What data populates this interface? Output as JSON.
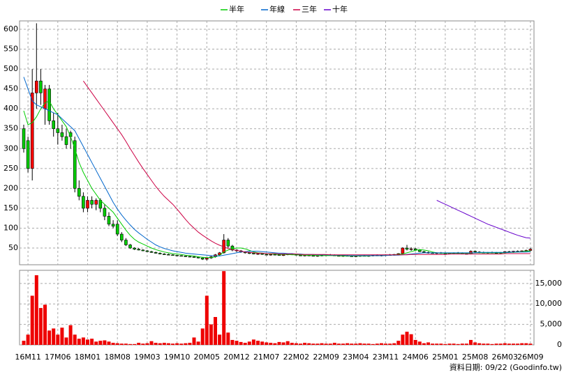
{
  "chart_data": {
    "type": "candlestick",
    "footer": "資料日期: 09/22  (Goodinfo.tw)",
    "categories": [
      null,
      "16M11",
      null,
      null,
      null,
      null,
      null,
      null,
      "17M06",
      null,
      null,
      null,
      null,
      null,
      null,
      "18M01",
      null,
      null,
      null,
      null,
      null,
      null,
      "18M08",
      null,
      null,
      null,
      null,
      null,
      null,
      "19M03",
      null,
      null,
      null,
      null,
      null,
      null,
      "19M10",
      null,
      null,
      null,
      null,
      null,
      null,
      "20M05",
      null,
      null,
      null,
      null,
      null,
      null,
      "20M12",
      null,
      null,
      null,
      null,
      null,
      null,
      "21M07",
      null,
      null,
      null,
      null,
      null,
      null,
      "22M02",
      null,
      null,
      null,
      null,
      null,
      null,
      "22M09",
      null,
      null,
      null,
      null,
      null,
      null,
      "23M04",
      null,
      null,
      null,
      null,
      null,
      null,
      "23M11",
      null,
      null,
      null,
      null,
      null,
      null,
      "24M06",
      null,
      null,
      null,
      null,
      null,
      null,
      "25M01",
      null,
      null,
      null,
      null,
      null,
      null,
      "25M08",
      null,
      null,
      null,
      null,
      null,
      null,
      "26M03",
      null,
      null,
      null,
      null,
      null,
      "26M09"
    ],
    "up_color": "#ff0000",
    "down_color": "#00cc00",
    "open": [
      350,
      320,
      250,
      440,
      470,
      400,
      450,
      370,
      350,
      340,
      330,
      340,
      320,
      200,
      180,
      150,
      170,
      160,
      170,
      150,
      130,
      110,
      110,
      85,
      70,
      58,
      50,
      47,
      45,
      43,
      41,
      39,
      37,
      35,
      34,
      33,
      32,
      31,
      30,
      29,
      28,
      27,
      25,
      22,
      25,
      28,
      33,
      38,
      70,
      55,
      45,
      43,
      40,
      38,
      37,
      35,
      36,
      34,
      33,
      34,
      33,
      32,
      33,
      35,
      34,
      32,
      31,
      32,
      31,
      30,
      31,
      32,
      33,
      32,
      31,
      30,
      31,
      30,
      29,
      30,
      31,
      30,
      31,
      32,
      31,
      32,
      33,
      32,
      34,
      36,
      50,
      47,
      48,
      45,
      41,
      39,
      38,
      37,
      38,
      37,
      36,
      37,
      38,
      37,
      36,
      35,
      42,
      40,
      39,
      38,
      39,
      38,
      37,
      39,
      41,
      40,
      42,
      41,
      43,
      44
    ],
    "high": [
      360,
      330,
      500,
      615,
      500,
      460,
      460,
      390,
      390,
      360,
      350,
      345,
      330,
      220,
      190,
      180,
      180,
      175,
      175,
      160,
      140,
      120,
      120,
      90,
      75,
      60,
      52,
      50,
      47,
      45,
      43,
      41,
      39,
      37,
      36,
      34,
      33,
      32,
      31,
      30,
      29,
      29,
      27,
      26,
      30,
      35,
      40,
      85,
      75,
      58,
      47,
      45,
      42,
      40,
      39,
      38,
      37,
      36,
      35,
      36,
      35,
      34,
      36,
      37,
      35,
      34,
      33,
      34,
      33,
      32,
      33,
      34,
      35,
      34,
      33,
      32,
      33,
      32,
      31,
      32,
      33,
      32,
      33,
      34,
      33,
      34,
      35,
      35,
      37,
      52,
      58,
      52,
      50,
      47,
      43,
      41,
      40,
      39,
      40,
      39,
      38,
      39,
      40,
      39,
      38,
      44,
      44,
      42,
      41,
      40,
      41,
      40,
      40,
      42,
      43,
      43,
      44,
      44,
      46,
      50
    ],
    "low": [
      290,
      240,
      220,
      400,
      410,
      360,
      360,
      330,
      310,
      320,
      300,
      300,
      190,
      170,
      140,
      140,
      150,
      145,
      140,
      120,
      105,
      100,
      80,
      65,
      55,
      48,
      45,
      44,
      42,
      40,
      38,
      36,
      34,
      33,
      32,
      31,
      30,
      29,
      28,
      27,
      26,
      24,
      20,
      19,
      23,
      26,
      30,
      36,
      50,
      42,
      40,
      38,
      36,
      35,
      34,
      33,
      33,
      32,
      31,
      32,
      31,
      30,
      32,
      33,
      31,
      30,
      29,
      30,
      29,
      28,
      29,
      30,
      31,
      30,
      29,
      28,
      29,
      28,
      27,
      28,
      29,
      28,
      29,
      30,
      29,
      30,
      31,
      31,
      32,
      35,
      44,
      43,
      44,
      40,
      38,
      36,
      36,
      35,
      36,
      35,
      34,
      35,
      36,
      35,
      34,
      34,
      38,
      37,
      37,
      36,
      37,
      36,
      35,
      37,
      39,
      38,
      40,
      40,
      41,
      42
    ],
    "close": [
      300,
      250,
      440,
      470,
      440,
      450,
      370,
      350,
      340,
      330,
      310,
      330,
      200,
      180,
      150,
      170,
      160,
      170,
      150,
      130,
      110,
      105,
      85,
      70,
      58,
      50,
      47,
      45,
      43,
      41,
      39,
      37,
      35,
      34,
      33,
      32,
      31,
      30,
      29,
      28,
      27,
      25,
      22,
      25,
      28,
      33,
      38,
      70,
      55,
      45,
      43,
      40,
      38,
      37,
      35,
      36,
      34,
      33,
      34,
      33,
      32,
      33,
      35,
      34,
      32,
      31,
      32,
      31,
      30,
      31,
      32,
      33,
      32,
      31,
      30,
      31,
      30,
      29,
      30,
      31,
      30,
      31,
      32,
      31,
      32,
      33,
      32,
      34,
      36,
      50,
      47,
      48,
      45,
      41,
      39,
      38,
      37,
      38,
      37,
      36,
      37,
      38,
      37,
      36,
      35,
      42,
      40,
      39,
      38,
      39,
      38,
      37,
      39,
      41,
      40,
      42,
      41,
      43,
      44,
      47
    ],
    "series": [
      {
        "name": "半年",
        "color": "#00cc00",
        "values": [
          395,
          360,
          365,
          380,
          400,
          415,
          420,
          400,
          385,
          370,
          355,
          330,
          300,
          265,
          240,
          220,
          200,
          185,
          170,
          160,
          150,
          140,
          125,
          110,
          95,
          82,
          72,
          65,
          60,
          55,
          50,
          46,
          43,
          40,
          38,
          36,
          35,
          34,
          32,
          31,
          30,
          28,
          27,
          26,
          26,
          28,
          32,
          40,
          45,
          48,
          50,
          50,
          48,
          44,
          40,
          38,
          37,
          36,
          35,
          35,
          34,
          34,
          34,
          33,
          33,
          33,
          32,
          32,
          32,
          31,
          31,
          31,
          31,
          31,
          31,
          30,
          30,
          30,
          30,
          30,
          30,
          30,
          31,
          31,
          31,
          32,
          32,
          33,
          34,
          35,
          38,
          41,
          44,
          46,
          45,
          43,
          40,
          38,
          37,
          37,
          37,
          37,
          37,
          37,
          37,
          37,
          38,
          38,
          38,
          38,
          38,
          38,
          38,
          38,
          39,
          39,
          40,
          41,
          42,
          43
        ]
      },
      {
        "name": "年線",
        "color": "#0066cc",
        "values": [
          480,
          450,
          420,
          410,
          405,
          400,
          395,
          390,
          385,
          375,
          365,
          355,
          345,
          325,
          305,
          285,
          265,
          245,
          225,
          205,
          185,
          165,
          148,
          133,
          120,
          108,
          97,
          88,
          80,
          72,
          65,
          58,
          53,
          49,
          46,
          43,
          41,
          39,
          37,
          36,
          35,
          34,
          33,
          32,
          31,
          30,
          30,
          32,
          34,
          36,
          38,
          40,
          41,
          42,
          42,
          42,
          41,
          40,
          39,
          38,
          37,
          37,
          36,
          36,
          35,
          35,
          34,
          34,
          34,
          33,
          33,
          33,
          32,
          32,
          32,
          32,
          31,
          31,
          31,
          31,
          31,
          31,
          31,
          31,
          31,
          31,
          32,
          32,
          32,
          33,
          34,
          35,
          36,
          37,
          38,
          38,
          38,
          38,
          38,
          38,
          38,
          38,
          38,
          38,
          38,
          38,
          38,
          39,
          39,
          39,
          39,
          39,
          39,
          39,
          39,
          40,
          40,
          40,
          40,
          41
        ]
      },
      {
        "name": "三年",
        "color": "#cc0044",
        "values": [
          null,
          null,
          null,
          null,
          null,
          null,
          null,
          null,
          null,
          null,
          null,
          null,
          null,
          null,
          470,
          455,
          440,
          425,
          410,
          395,
          380,
          365,
          350,
          335,
          318,
          300,
          283,
          266,
          250,
          235,
          220,
          205,
          192,
          180,
          170,
          160,
          148,
          135,
          122,
          110,
          100,
          90,
          82,
          75,
          68,
          62,
          57,
          53,
          49,
          46,
          44,
          42,
          40,
          39,
          38,
          37,
          37,
          36,
          36,
          36,
          35,
          35,
          35,
          35,
          35,
          34,
          34,
          34,
          34,
          34,
          34,
          34,
          33,
          33,
          33,
          33,
          33,
          33,
          33,
          33,
          33,
          33,
          33,
          33,
          33,
          33,
          33,
          33,
          33,
          33,
          33,
          34,
          34,
          34,
          34,
          34,
          34,
          34,
          34,
          34,
          35,
          35,
          35,
          35,
          35,
          35,
          35,
          35,
          35,
          35,
          35,
          35,
          35,
          36,
          36,
          36,
          36,
          36,
          36,
          36
        ]
      },
      {
        "name": "十年",
        "color": "#6600cc",
        "values": [
          null,
          null,
          null,
          null,
          null,
          null,
          null,
          null,
          null,
          null,
          null,
          null,
          null,
          null,
          null,
          null,
          null,
          null,
          null,
          null,
          null,
          null,
          null,
          null,
          null,
          null,
          null,
          null,
          null,
          null,
          null,
          null,
          null,
          null,
          null,
          null,
          null,
          null,
          null,
          null,
          null,
          null,
          null,
          null,
          null,
          null,
          null,
          null,
          null,
          null,
          null,
          null,
          null,
          null,
          null,
          null,
          null,
          null,
          null,
          null,
          null,
          null,
          null,
          null,
          null,
          null,
          null,
          null,
          null,
          null,
          null,
          null,
          null,
          null,
          null,
          null,
          null,
          null,
          null,
          null,
          null,
          null,
          null,
          null,
          null,
          null,
          null,
          null,
          null,
          null,
          null,
          null,
          null,
          null,
          null,
          null,
          null,
          170,
          165,
          160,
          155,
          150,
          145,
          140,
          135,
          130,
          125,
          120,
          115,
          110,
          106,
          102,
          98,
          94,
          90,
          86,
          82,
          79,
          76,
          75
        ]
      }
    ],
    "ylim": [
      8,
      621
    ],
    "yticks": [
      50,
      100,
      150,
      200,
      250,
      300,
      350,
      400,
      450,
      500,
      550,
      600
    ],
    "grid": true,
    "volume": {
      "color": "#ee0000",
      "values": [
        1000,
        2500,
        12000,
        17000,
        9000,
        9800,
        3500,
        4000,
        2500,
        4200,
        1800,
        4800,
        2500,
        1500,
        1800,
        1300,
        1500,
        800,
        1000,
        1100,
        800,
        500,
        400,
        300,
        300,
        200,
        200,
        500,
        300,
        400,
        900,
        500,
        400,
        500,
        400,
        300,
        400,
        300,
        400,
        500,
        1800,
        800,
        4000,
        12000,
        5000,
        6800,
        2500,
        18000,
        3000,
        1200,
        1000,
        700,
        500,
        800,
        1300,
        1000,
        800,
        600,
        500,
        400,
        700,
        600,
        900,
        500,
        400,
        300,
        500,
        400,
        300,
        300,
        400,
        300,
        300,
        500,
        300,
        300,
        400,
        300,
        300,
        400,
        300,
        300,
        200,
        300,
        400,
        300,
        300,
        400,
        1000,
        2500,
        3200,
        2600,
        1200,
        800,
        400,
        600,
        300,
        300,
        300,
        200,
        300,
        300,
        200,
        300,
        300,
        1200,
        600,
        400,
        300,
        300,
        200,
        300,
        300,
        400,
        300,
        300,
        300,
        400,
        400,
        300
      ],
      "ylim": [
        0,
        18200
      ],
      "yticks": [
        0,
        {
          "value": 5000,
          "label": "5,000"
        },
        {
          "value": 10000,
          "label": "10,000"
        },
        {
          "value": 15000,
          "label": "15,000"
        }
      ]
    }
  }
}
